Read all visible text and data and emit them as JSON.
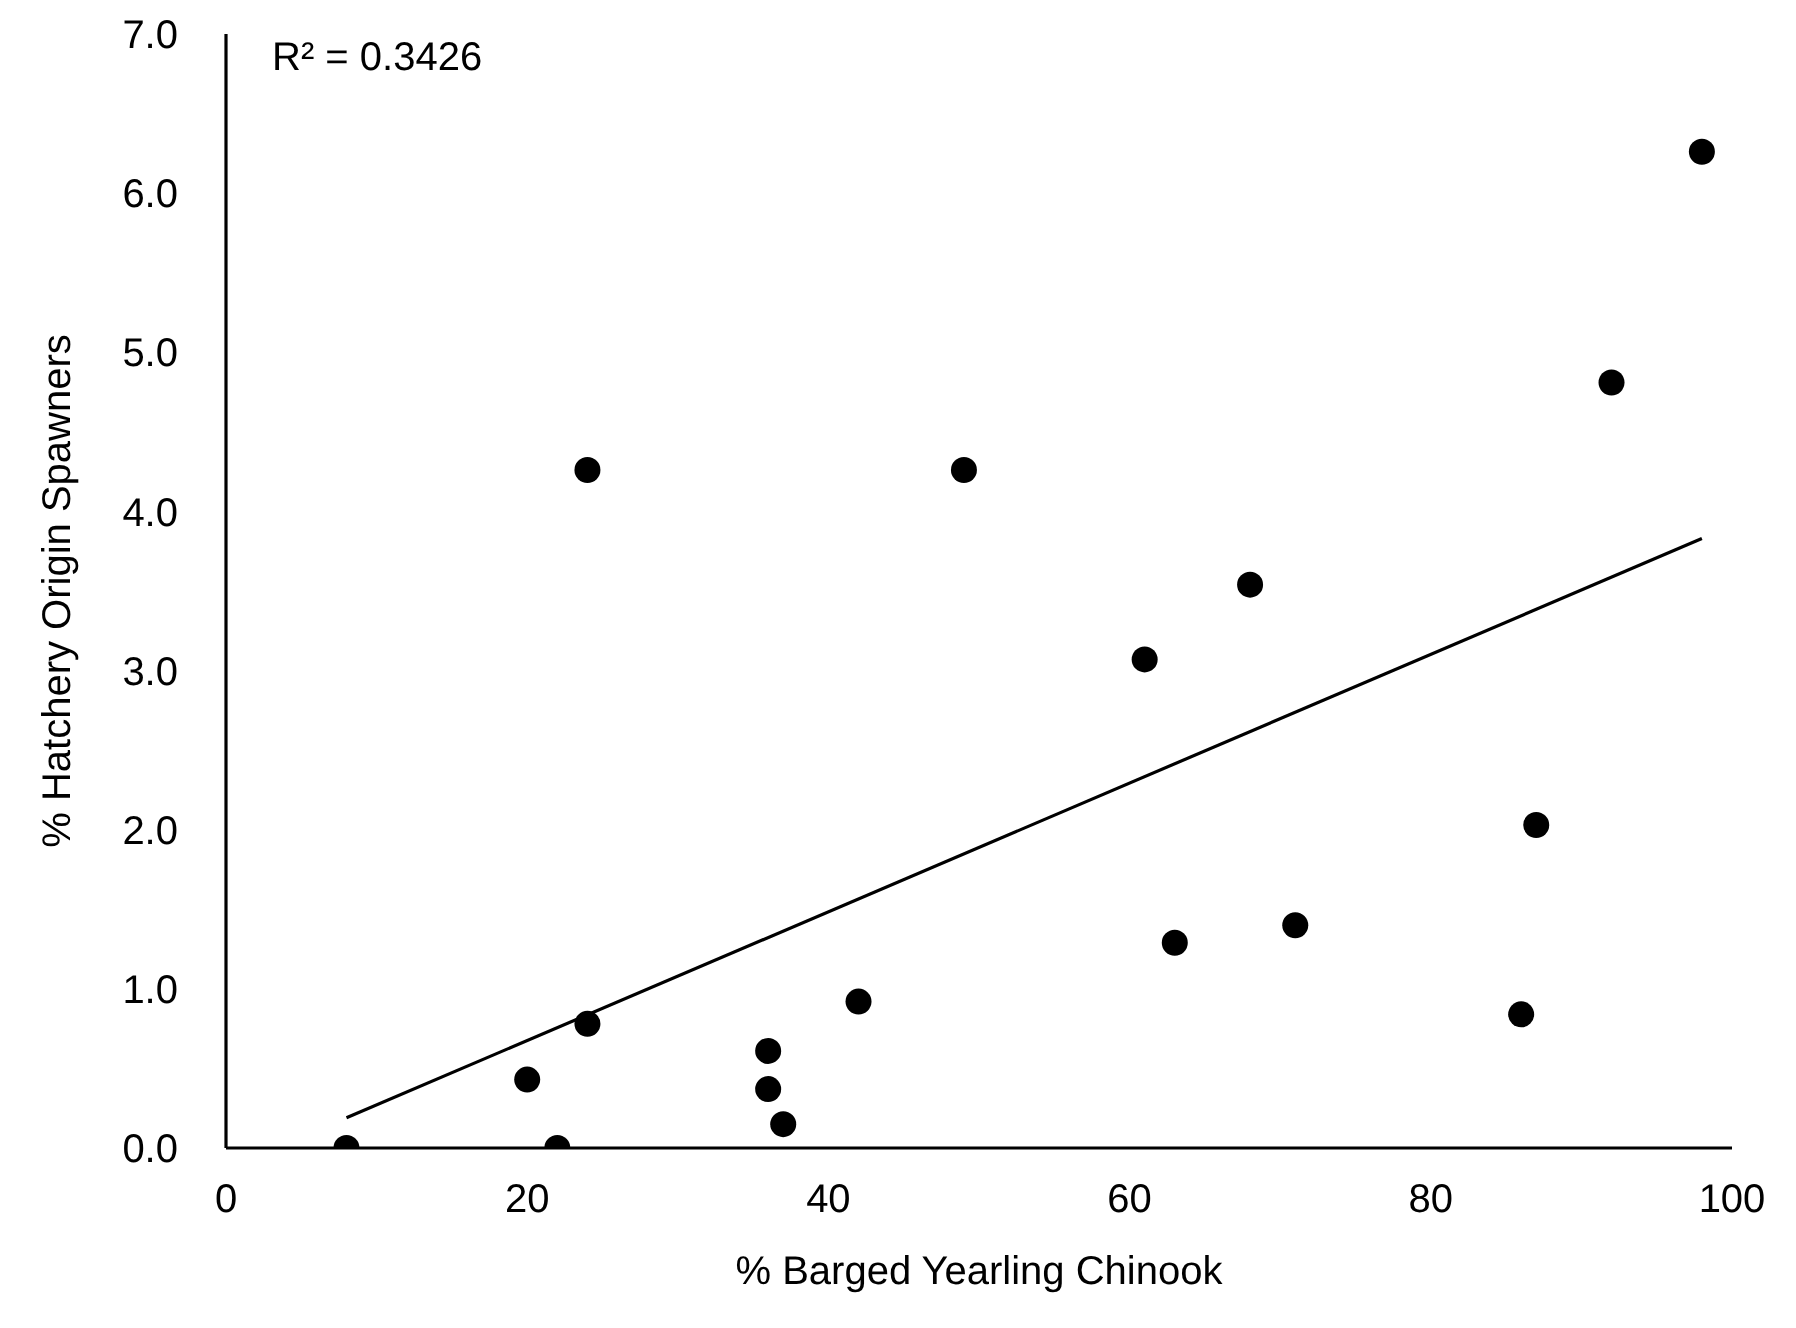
{
  "chart_data": {
    "type": "scatter",
    "xlabel": "% Barged Yearling Chinook",
    "ylabel": "% Hatchery Origin Spawners",
    "annotations": [
      "R² = 0.3426"
    ],
    "xlim": [
      0,
      100
    ],
    "xticks": [
      0,
      20,
      40,
      60,
      80,
      100
    ],
    "ylim": [
      0,
      7
    ],
    "yticks": [
      {
        "value": 0,
        "label": "0.0"
      },
      {
        "value": 1,
        "label": "1.0"
      },
      {
        "value": 2,
        "label": "2.0"
      },
      {
        "value": 3,
        "label": "3.0"
      },
      {
        "value": 4,
        "label": "4.0"
      },
      {
        "value": 5,
        "label": "5.0"
      },
      {
        "value": 6,
        "label": "6.0"
      },
      {
        "value": 7,
        "label": "7.0"
      }
    ],
    "grid": false,
    "legend": false,
    "series": [
      {
        "color": "#000000",
        "marker": "circle",
        "x": [
          8,
          20,
          22,
          24,
          24,
          36,
          36,
          37,
          42,
          49,
          61,
          68,
          63,
          71,
          87,
          86,
          92,
          98
        ],
        "values": [
          0,
          0.43,
          0,
          0.78,
          4.26,
          0.61,
          0.37,
          0.15,
          0.92,
          4.26,
          3.07,
          3.54,
          1.29,
          1.4,
          2.03,
          0.84,
          4.81,
          6.26
        ]
      },
      {
        "type": "line",
        "color": "#000000",
        "marker": "none",
        "line_style": "solid",
        "x": [
          8,
          98
        ],
        "values": [
          0.19,
          3.83
        ]
      }
    ]
  }
}
